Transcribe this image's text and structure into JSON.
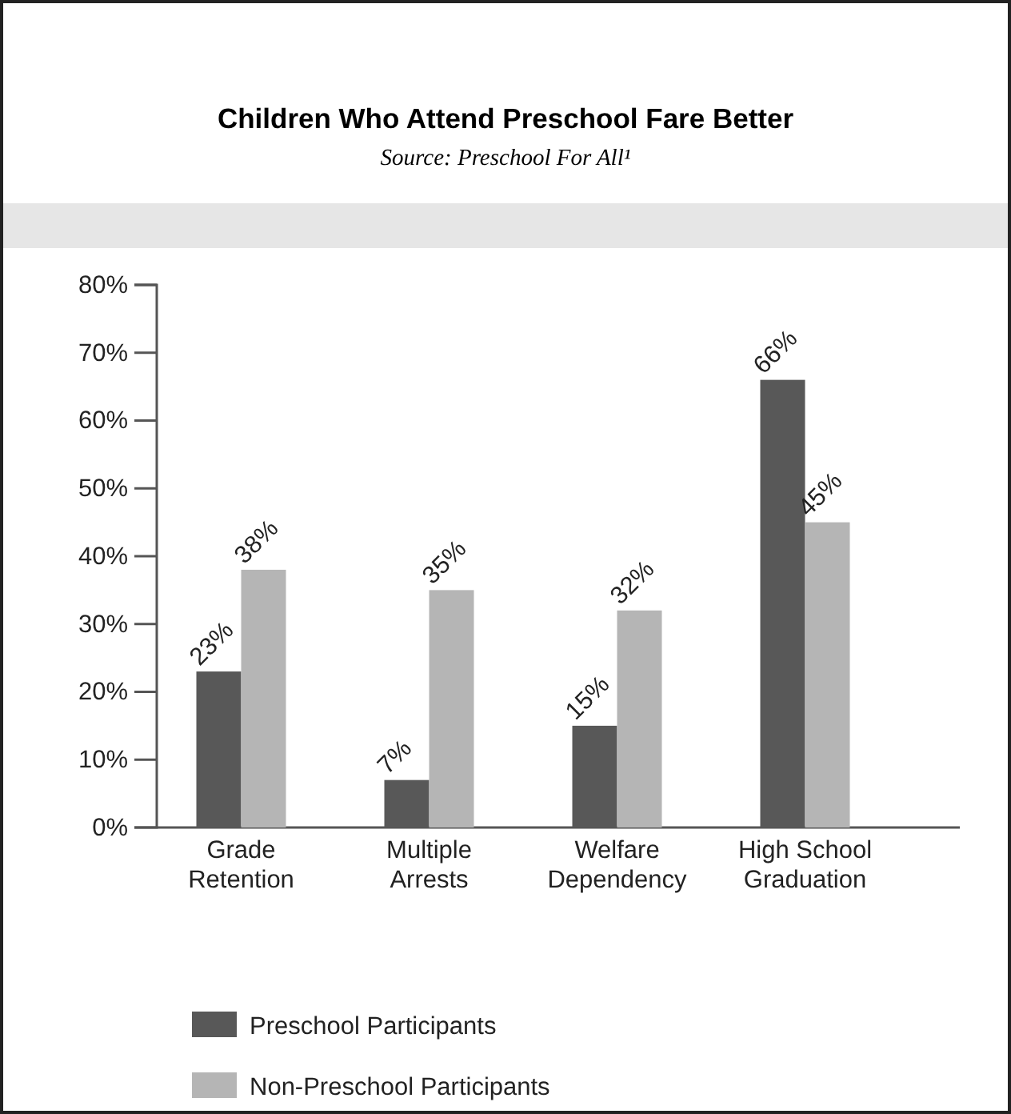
{
  "chart_data": {
    "type": "bar",
    "title": "Children Who Attend Preschool Fare Better",
    "subtitle": "Source: Preschool For All¹",
    "categories": [
      "Grade Retention",
      "Multiple Arrests",
      "Welfare Dependency",
      "High School Graduation"
    ],
    "series": [
      {
        "name": "Preschool Participants",
        "color": "#585858",
        "values": [
          23,
          7,
          15,
          66
        ]
      },
      {
        "name": "Non-Preschool Participants",
        "color": "#b5b5b5",
        "values": [
          38,
          35,
          32,
          45
        ]
      }
    ],
    "ylim": [
      0,
      80
    ],
    "yticks": [
      {
        "value": 0,
        "label": "0%"
      },
      {
        "value": 10,
        "label": "10%"
      },
      {
        "value": 20,
        "label": "20%"
      },
      {
        "value": 30,
        "label": "30%"
      },
      {
        "value": 40,
        "label": "40%"
      },
      {
        "value": 50,
        "label": "50%"
      },
      {
        "value": 60,
        "label": "60%"
      },
      {
        "value": 70,
        "label": "70%"
      },
      {
        "value": 80,
        "label": "80%"
      }
    ],
    "value_labels": [
      [
        "23%",
        "7%",
        "15%",
        "66%"
      ],
      [
        "38%",
        "35%",
        "32%",
        "45%"
      ]
    ],
    "grid": false,
    "legend": "bottom"
  }
}
